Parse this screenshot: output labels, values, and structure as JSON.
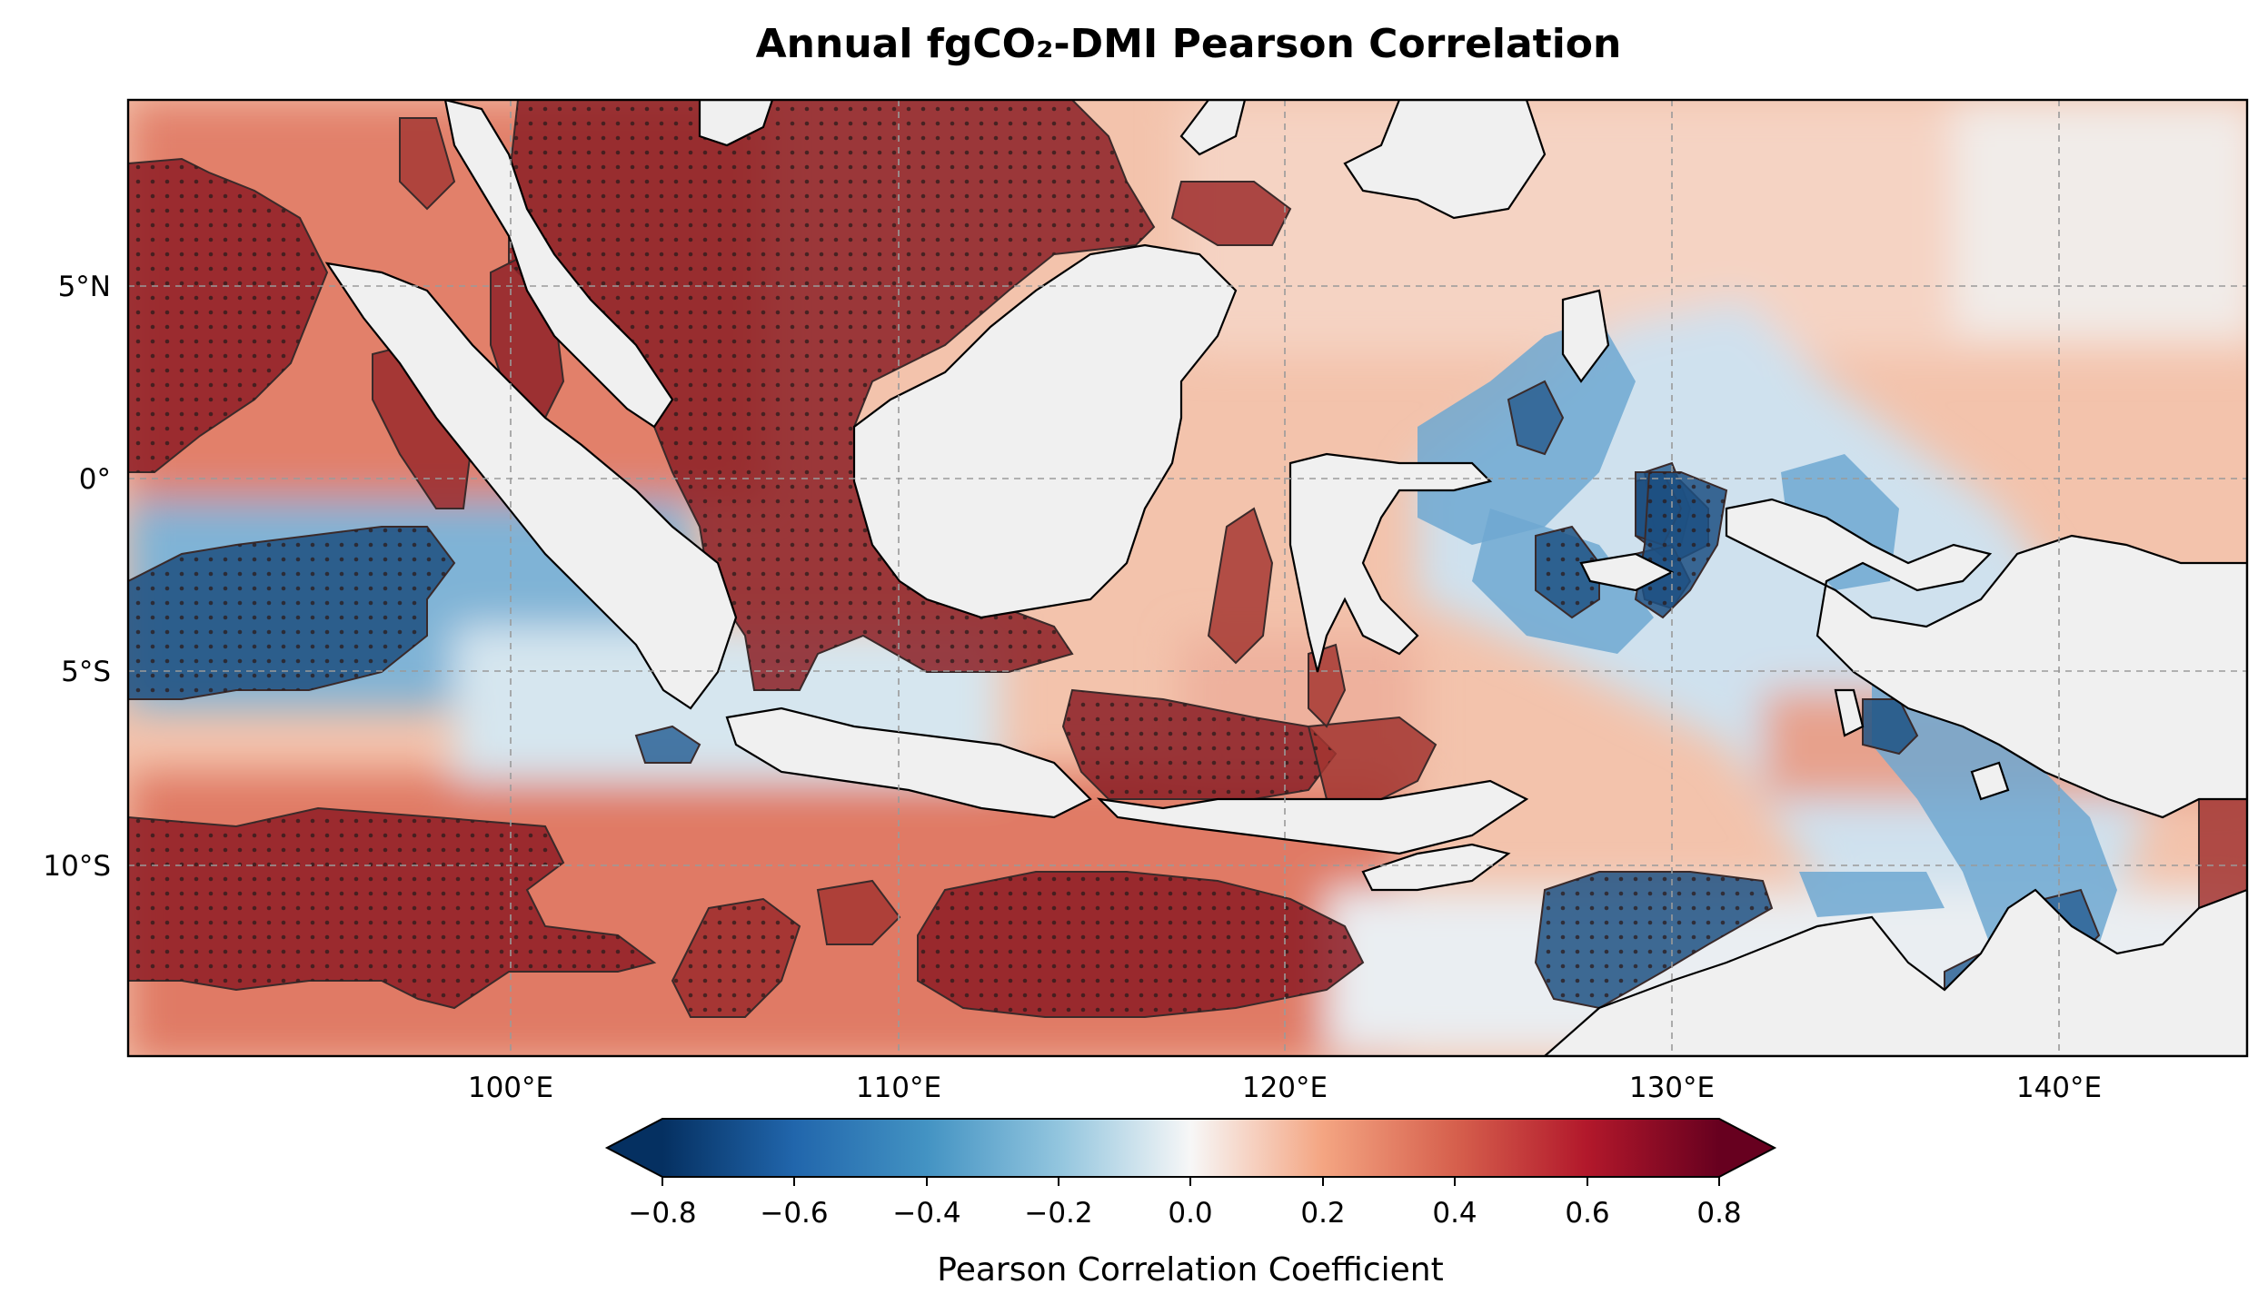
{
  "title": "Annual fgCO₂-DMI Pearson Correlation",
  "map": {
    "lon_range": [
      90,
      145
    ],
    "lat_range": [
      -15,
      10
    ],
    "lon_ticks": [
      {
        "value": 100,
        "label": "100°E"
      },
      {
        "value": 110,
        "label": "110°E"
      },
      {
        "value": 120,
        "label": "120°E"
      },
      {
        "value": 130,
        "label": "130°E"
      },
      {
        "value": 140,
        "label": "140°E"
      }
    ],
    "lat_ticks": [
      {
        "value": 5,
        "label": "5°N"
      },
      {
        "value": 0,
        "label": "0°"
      },
      {
        "value": -5,
        "label": "5°S"
      },
      {
        "value": -10,
        "label": "10°S"
      }
    ],
    "significance": "stippled (dots) where significant"
  },
  "colorbar": {
    "label": "Pearson Correlation Coefficient",
    "colormap": "RdBu_r",
    "range": [
      -0.8,
      0.8
    ],
    "extend": "both",
    "ticks": [
      {
        "value": -0.8,
        "label": "−0.8"
      },
      {
        "value": -0.6,
        "label": "−0.6"
      },
      {
        "value": -0.4,
        "label": "−0.4"
      },
      {
        "value": -0.2,
        "label": "−0.2"
      },
      {
        "value": 0.0,
        "label": "0.0"
      },
      {
        "value": 0.2,
        "label": "0.2"
      },
      {
        "value": 0.4,
        "label": "0.4"
      },
      {
        "value": 0.6,
        "label": "0.6"
      },
      {
        "value": 0.8,
        "label": "0.8"
      }
    ]
  },
  "colors": {
    "strong_positive": "#8b1a22",
    "positive": "#e9907a",
    "weak_positive": "#f6d4c2",
    "neutral": "#f7f7f7",
    "weak_negative": "#cfe3ef",
    "negative": "#5a9bc8",
    "strong_negative": "#1f4f7e",
    "land": "#f0f0f0"
  }
}
